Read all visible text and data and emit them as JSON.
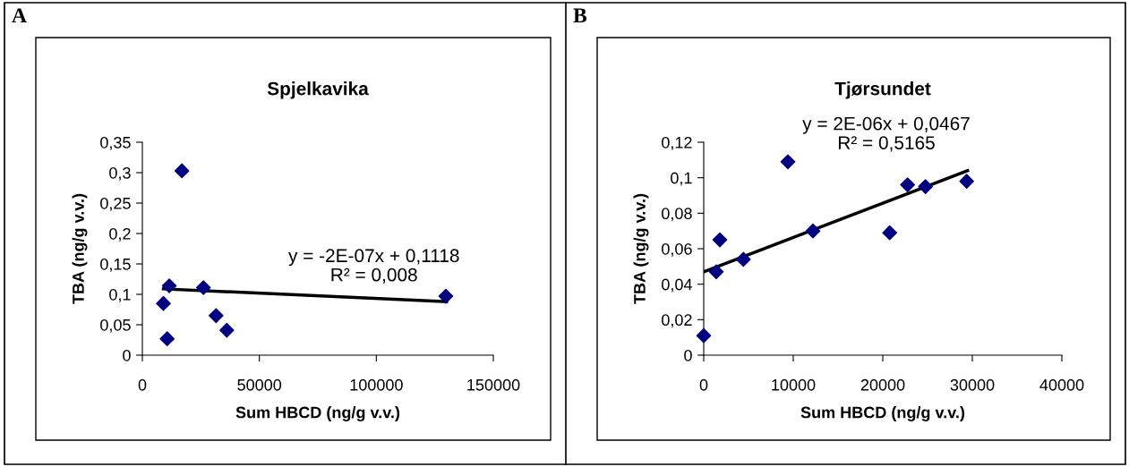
{
  "chart_data": [
    {
      "type": "scatter",
      "title": "Spjelkavika",
      "xlabel": "Sum HBCD (ng/g v.v.)",
      "ylabel": "TBA (ng/g v.v.)",
      "annotations": [
        "A",
        "y = -2E-07x + 0,1118",
        "R² = 0,008"
      ],
      "xlim": [
        0,
        150000
      ],
      "xticks": [
        0,
        50000,
        100000,
        150000
      ],
      "ylim": [
        0,
        0.35
      ],
      "yticks": [
        0,
        {
          "value": 0.05,
          "label": "0,05"
        },
        {
          "value": 0.1,
          "label": "0,1"
        },
        {
          "value": 0.15,
          "label": "0,15"
        },
        {
          "value": 0.2,
          "label": "0,2"
        },
        {
          "value": 0.25,
          "label": "0,25"
        },
        {
          "value": 0.3,
          "label": "0,3"
        },
        {
          "value": 0.35,
          "label": "0,35"
        }
      ],
      "marker": "diamond",
      "grid": false,
      "legend": false,
      "series": [
        {
          "type": "scatter",
          "color": "#000080",
          "x": [
            9000,
            10600,
            11500,
            16900,
            26100,
            31500,
            36100,
            129700
          ],
          "values": [
            0.085,
            0.027,
            0.114,
            0.303,
            0.111,
            0.065,
            0.041,
            0.097
          ]
        },
        {
          "type": "line",
          "color": "#000000",
          "marker": "none",
          "x": [
            9000,
            130000
          ],
          "values": [
            0.109,
            0.088
          ]
        }
      ]
    },
    {
      "type": "scatter",
      "title": "Tjørsundet",
      "xlabel": "Sum HBCD (ng/g v.v.)",
      "ylabel": "TBA (ng/g v.v.)",
      "annotations": [
        "B",
        "y = 2E-06x + 0,0467",
        "R² = 0,5165"
      ],
      "xlim": [
        0,
        40000
      ],
      "xticks": [
        0,
        10000,
        20000,
        30000,
        40000
      ],
      "ylim": [
        0,
        0.12
      ],
      "yticks": [
        0,
        {
          "value": 0.02,
          "label": "0,02"
        },
        {
          "value": 0.04,
          "label": "0,04"
        },
        {
          "value": 0.06,
          "label": "0,06"
        },
        {
          "value": 0.08,
          "label": "0,08"
        },
        {
          "value": 0.1,
          "label": "0,1"
        },
        {
          "value": 0.12,
          "label": "0,12"
        }
      ],
      "marker": "diamond",
      "grid": false,
      "legend": false,
      "series": [
        {
          "type": "scatter",
          "color": "#000080",
          "x": [
            0,
            1400,
            1800,
            4430,
            9400,
            12200,
            20770,
            22770,
            24770,
            29370
          ],
          "values": [
            0.011,
            0.047,
            0.065,
            0.054,
            0.109,
            0.07,
            0.069,
            0.096,
            0.095,
            0.098
          ]
        },
        {
          "type": "line",
          "color": "#000000",
          "marker": "none",
          "x": [
            0,
            29470
          ],
          "values": [
            0.047,
            0.104
          ]
        }
      ]
    }
  ]
}
